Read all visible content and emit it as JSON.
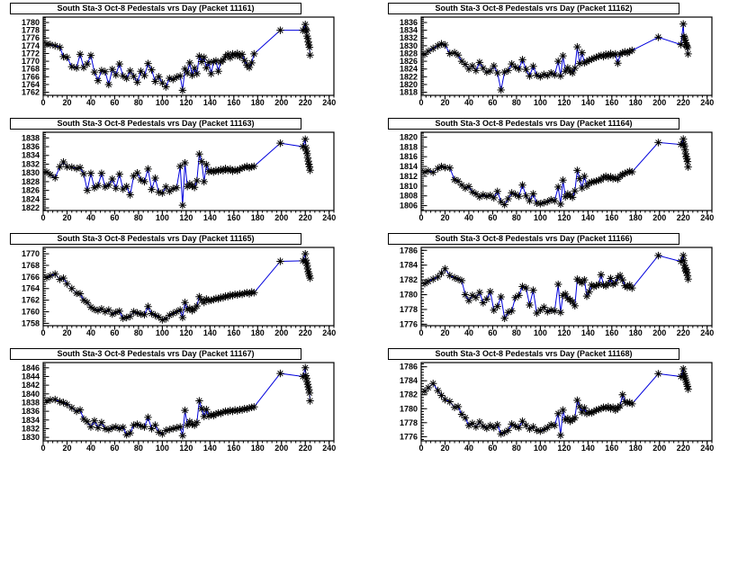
{
  "window": {
    "background": "#ffffff"
  },
  "chart_data": {
    "type": "scatter",
    "subtype": "line-connected-star-markers",
    "layout": {
      "rows": 4,
      "cols": 2,
      "grid": "off",
      "legend": "none",
      "xlabel": "",
      "ylabel": ""
    },
    "style": {
      "background": "#ffffff",
      "frame_color": "#000000",
      "line_color": "#0000dd",
      "marker_color": "#000000",
      "marker": "star-8-spoke",
      "tick_label_color": "#000000"
    },
    "x_axis": {
      "min_tick": 0,
      "max_tick": 240,
      "tick_step": 20,
      "minor_step": 4,
      "range": [
        0,
        244
      ]
    },
    "x_days": [
      3,
      6,
      10,
      14,
      17,
      20,
      24,
      28,
      31,
      34,
      37,
      40,
      43,
      46,
      49,
      52,
      55,
      58,
      61,
      64,
      67,
      70,
      73,
      76,
      79,
      82,
      85,
      88,
      91,
      94,
      97,
      100,
      103,
      106,
      109,
      112,
      115,
      117,
      119,
      121,
      123,
      125,
      127,
      129,
      131,
      133,
      135,
      137,
      139,
      141,
      143,
      145,
      147,
      149,
      151,
      153,
      155,
      157,
      159,
      161,
      163,
      165,
      167,
      169,
      171,
      173,
      175,
      177,
      199,
      218,
      220,
      220.5,
      221,
      221.5,
      222,
      222.5,
      223,
      223.5,
      224
    ],
    "charts": [
      {
        "title": "South Sta-3 Oct-8 Pedestals vrs Day (Packet 11161)",
        "y_axis": {
          "min_tick": 1762,
          "max_tick": 1780,
          "tick_step": 2,
          "range": [
            1761.2,
            1781.4
          ]
        },
        "y_values": [
          1774.5,
          1774.3,
          1774.0,
          1773.6,
          1771.2,
          1771.0,
          1768.6,
          1768.3,
          1771.8,
          1768.4,
          1769.3,
          1771.5,
          1767.2,
          1765.0,
          1767.6,
          1767.3,
          1764.0,
          1767.9,
          1766.5,
          1769.3,
          1766.2,
          1765.6,
          1767.5,
          1766.1,
          1764.6,
          1767.4,
          1766.3,
          1769.4,
          1767.8,
          1764.8,
          1766.0,
          1764.4,
          1763.4,
          1765.6,
          1765.3,
          1765.9,
          1766.2,
          1762.5,
          1768.0,
          1767.0,
          1769.6,
          1766.4,
          1768.2,
          1766.8,
          1771.3,
          1769.9,
          1771.0,
          1768.3,
          1769.7,
          1766.8,
          1769.9,
          1770.1,
          1767.4,
          1769.8,
          1770.3,
          1771.2,
          1771.8,
          1770.9,
          1771.9,
          1771.5,
          1772.0,
          1771.2,
          1771.8,
          1770.2,
          1769.0,
          1768.4,
          1769.6,
          1771.9,
          1778.0,
          1778.0,
          1779.5,
          1778.2,
          1777.9,
          1776.5,
          1775.9,
          1775.0,
          1774.2,
          1773.6,
          1771.6
        ]
      },
      {
        "title": "South Sta-3 Oct-8 Pedestals vrs Day (Packet 11162)",
        "y_axis": {
          "min_tick": 1818,
          "max_tick": 1836,
          "tick_step": 2,
          "range": [
            1817.2,
            1837.4
          ]
        },
        "y_values": [
          1827.8,
          1828.6,
          1829.3,
          1830.0,
          1830.5,
          1830.2,
          1828.0,
          1828.2,
          1827.6,
          1826.0,
          1825.2,
          1824.0,
          1824.8,
          1823.6,
          1825.7,
          1824.2,
          1823.2,
          1823.5,
          1824.8,
          1823.0,
          1818.6,
          1823.2,
          1823.6,
          1825.3,
          1824.5,
          1824.0,
          1826.4,
          1823.9,
          1822.2,
          1824.7,
          1822.4,
          1822.0,
          1822.6,
          1822.3,
          1823.0,
          1822.5,
          1826.0,
          1822.2,
          1827.4,
          1823.4,
          1824.3,
          1823.5,
          1823.0,
          1824.2,
          1829.7,
          1825.4,
          1828.2,
          1825.6,
          1825.9,
          1826.3,
          1826.5,
          1826.8,
          1827.0,
          1827.3,
          1827.5,
          1827.2,
          1827.8,
          1827.4,
          1828.0,
          1827.6,
          1827.9,
          1825.5,
          1827.8,
          1828.2,
          1828.4,
          1828.1,
          1828.6,
          1828.8,
          1832.2,
          1830.3,
          1835.6,
          1832.4,
          1832.0,
          1831.5,
          1830.8,
          1830.2,
          1829.9,
          1829.5,
          1827.9
        ]
      },
      {
        "title": "South Sta-3 Oct-8 Pedestals vrs Day (Packet 11163)",
        "y_axis": {
          "min_tick": 1822,
          "max_tick": 1838,
          "tick_step": 2,
          "range": [
            1821.4,
            1839.3
          ]
        },
        "y_values": [
          1830.2,
          1829.6,
          1828.9,
          1831.4,
          1832.5,
          1831.4,
          1831.3,
          1831.0,
          1831.2,
          1829.8,
          1826.0,
          1829.9,
          1826.6,
          1827.1,
          1829.9,
          1826.8,
          1827.2,
          1828.6,
          1826.5,
          1829.7,
          1826.3,
          1826.9,
          1825.0,
          1829.3,
          1830.0,
          1828.4,
          1828.0,
          1830.9,
          1826.2,
          1828.8,
          1825.6,
          1825.4,
          1826.8,
          1825.8,
          1826.4,
          1826.6,
          1831.5,
          1822.6,
          1832.3,
          1826.9,
          1827.5,
          1827.0,
          1826.7,
          1828.2,
          1834.3,
          1832.6,
          1828.0,
          1831.9,
          1830.3,
          1830.5,
          1830.2,
          1830.6,
          1830.4,
          1830.8,
          1830.5,
          1831.0,
          1830.6,
          1830.9,
          1830.4,
          1830.7,
          1830.5,
          1830.9,
          1831.1,
          1831.3,
          1831.5,
          1831.2,
          1831.4,
          1831.5,
          1836.8,
          1836.0,
          1837.7,
          1835.8,
          1835.0,
          1834.4,
          1833.5,
          1832.7,
          1832.0,
          1831.4,
          1830.6
        ]
      },
      {
        "title": "South Sta-3 Oct-8 Pedestals vrs Day (Packet 11164)",
        "y_axis": {
          "min_tick": 1806,
          "max_tick": 1820,
          "tick_step": 2,
          "range": [
            1805.0,
            1821.0
          ]
        },
        "y_values": [
          1812.9,
          1813.1,
          1812.8,
          1813.6,
          1814.0,
          1813.8,
          1813.7,
          1811.3,
          1811.0,
          1810.2,
          1809.6,
          1809.9,
          1808.8,
          1808.4,
          1807.8,
          1808.2,
          1807.9,
          1808.1,
          1807.6,
          1808.9,
          1806.8,
          1806.2,
          1807.4,
          1808.6,
          1808.3,
          1807.9,
          1810.2,
          1808.0,
          1807.0,
          1808.4,
          1806.5,
          1806.4,
          1806.6,
          1806.8,
          1807.2,
          1807.0,
          1809.8,
          1806.3,
          1811.2,
          1807.8,
          1808.4,
          1808.0,
          1807.7,
          1809.0,
          1813.2,
          1811.5,
          1809.6,
          1812.0,
          1810.0,
          1810.6,
          1810.8,
          1810.9,
          1811.0,
          1811.2,
          1811.3,
          1811.8,
          1812.0,
          1811.6,
          1811.9,
          1811.5,
          1811.7,
          1811.4,
          1812.0,
          1812.4,
          1812.6,
          1812.8,
          1813.0,
          1812.9,
          1818.9,
          1818.5,
          1819.6,
          1818.6,
          1818.2,
          1817.4,
          1816.6,
          1816.0,
          1815.6,
          1815.0,
          1813.9
        ]
      },
      {
        "title": "South Sta-3 Oct-8 Pedestals vrs Day (Packet 11165)",
        "y_axis": {
          "min_tick": 1758,
          "max_tick": 1770,
          "tick_step": 2,
          "range": [
            1757.6,
            1771.1
          ]
        },
        "y_values": [
          1765.9,
          1766.2,
          1766.5,
          1765.6,
          1765.8,
          1764.8,
          1764.0,
          1763.2,
          1763.1,
          1762.0,
          1761.6,
          1760.8,
          1760.4,
          1760.2,
          1760.5,
          1760.0,
          1760.3,
          1759.6,
          1759.9,
          1760.1,
          1758.9,
          1759.0,
          1759.2,
          1760.0,
          1759.8,
          1759.6,
          1759.5,
          1760.9,
          1759.7,
          1759.4,
          1759.1,
          1758.6,
          1758.8,
          1759.4,
          1759.7,
          1760.0,
          1760.3,
          1759.0,
          1761.6,
          1760.4,
          1760.6,
          1760.2,
          1760.5,
          1761.0,
          1762.6,
          1762.0,
          1761.6,
          1762.2,
          1761.9,
          1762.0,
          1762.1,
          1762.3,
          1762.2,
          1762.5,
          1762.4,
          1762.7,
          1762.6,
          1762.9,
          1762.8,
          1763.0,
          1762.9,
          1763.1,
          1763.0,
          1763.2,
          1763.3,
          1763.1,
          1763.4,
          1763.3,
          1768.7,
          1768.8,
          1770.0,
          1768.9,
          1768.4,
          1768.0,
          1767.4,
          1766.9,
          1766.5,
          1766.2,
          1765.8
        ]
      },
      {
        "title": "South Sta-3 Oct-8 Pedestals vrs Day (Packet 11166)",
        "y_axis": {
          "min_tick": 1776,
          "max_tick": 1786,
          "tick_step": 2,
          "range": [
            1775.8,
            1786.4
          ]
        },
        "y_values": [
          1781.5,
          1781.8,
          1782.1,
          1782.4,
          1782.9,
          1783.5,
          1782.6,
          1782.3,
          1782.1,
          1781.9,
          1780.0,
          1779.2,
          1779.9,
          1779.6,
          1780.3,
          1778.9,
          1779.4,
          1780.4,
          1777.9,
          1778.4,
          1779.7,
          1776.8,
          1777.6,
          1777.8,
          1779.6,
          1779.9,
          1781.1,
          1780.9,
          1778.6,
          1780.6,
          1777.5,
          1777.9,
          1778.3,
          1777.7,
          1777.9,
          1777.8,
          1781.4,
          1777.6,
          1779.9,
          1780.1,
          1779.5,
          1779.3,
          1779.0,
          1778.5,
          1782.1,
          1781.8,
          1781.6,
          1782.0,
          1779.8,
          1780.4,
          1781.3,
          1781.1,
          1781.2,
          1781.4,
          1782.7,
          1781.3,
          1781.2,
          1781.5,
          1782.2,
          1781.4,
          1781.6,
          1782.3,
          1782.6,
          1782.0,
          1781.2,
          1781.0,
          1781.3,
          1780.9,
          1785.3,
          1784.5,
          1785.3,
          1784.6,
          1784.0,
          1783.6,
          1783.2,
          1783.4,
          1783.0,
          1782.6,
          1782.1
        ]
      },
      {
        "title": "South Sta-3 Oct-8 Pedestals vrs Day (Packet 11167)",
        "y_axis": {
          "min_tick": 1830,
          "max_tick": 1846,
          "tick_step": 2,
          "range": [
            1829.2,
            1847.2
          ]
        },
        "y_values": [
          1838.4,
          1838.6,
          1838.7,
          1838.2,
          1838.0,
          1837.6,
          1836.8,
          1836.0,
          1836.3,
          1834.2,
          1833.6,
          1832.4,
          1833.8,
          1832.2,
          1833.4,
          1832.0,
          1831.8,
          1832.2,
          1832.4,
          1832.0,
          1832.3,
          1830.6,
          1831.0,
          1832.8,
          1833.0,
          1832.6,
          1832.4,
          1834.6,
          1832.0,
          1832.8,
          1831.2,
          1830.8,
          1831.6,
          1831.8,
          1832.0,
          1832.2,
          1832.4,
          1830.4,
          1836.2,
          1832.8,
          1833.6,
          1833.0,
          1832.8,
          1833.4,
          1838.4,
          1836.6,
          1834.8,
          1836.4,
          1834.9,
          1835.2,
          1835.0,
          1835.4,
          1835.6,
          1835.5,
          1835.8,
          1836.0,
          1835.9,
          1836.2,
          1836.0,
          1836.3,
          1836.1,
          1836.4,
          1836.3,
          1836.6,
          1836.5,
          1836.8,
          1836.9,
          1837.0,
          1844.7,
          1844.0,
          1846.0,
          1844.2,
          1843.6,
          1842.8,
          1842.2,
          1841.6,
          1841.0,
          1840.2,
          1838.4
        ]
      },
      {
        "title": "South Sta-3 Oct-8 Pedestals vrs Day (Packet 11168)",
        "y_axis": {
          "min_tick": 1776,
          "max_tick": 1786,
          "tick_step": 2,
          "range": [
            1775.4,
            1786.6
          ]
        },
        "y_values": [
          1782.5,
          1783.0,
          1783.6,
          1782.6,
          1781.9,
          1781.3,
          1781.0,
          1780.2,
          1780.3,
          1779.2,
          1778.7,
          1777.6,
          1777.9,
          1777.4,
          1778.1,
          1777.5,
          1777.2,
          1777.6,
          1777.3,
          1777.7,
          1776.4,
          1776.6,
          1776.9,
          1777.8,
          1777.5,
          1777.3,
          1778.2,
          1777.6,
          1777.1,
          1777.4,
          1776.9,
          1776.8,
          1777.0,
          1777.3,
          1777.7,
          1777.6,
          1779.3,
          1776.2,
          1779.8,
          1778.4,
          1778.6,
          1778.2,
          1778.4,
          1778.7,
          1781.2,
          1780.3,
          1779.5,
          1780.1,
          1779.3,
          1779.5,
          1779.4,
          1779.6,
          1779.8,
          1779.9,
          1780.0,
          1780.2,
          1780.1,
          1780.3,
          1780.0,
          1780.2,
          1779.8,
          1780.1,
          1780.4,
          1782.0,
          1781.0,
          1780.8,
          1780.9,
          1780.7,
          1785.0,
          1784.6,
          1785.7,
          1785.0,
          1784.7,
          1784.4,
          1784.1,
          1783.8,
          1783.5,
          1783.2,
          1782.8
        ]
      }
    ]
  }
}
